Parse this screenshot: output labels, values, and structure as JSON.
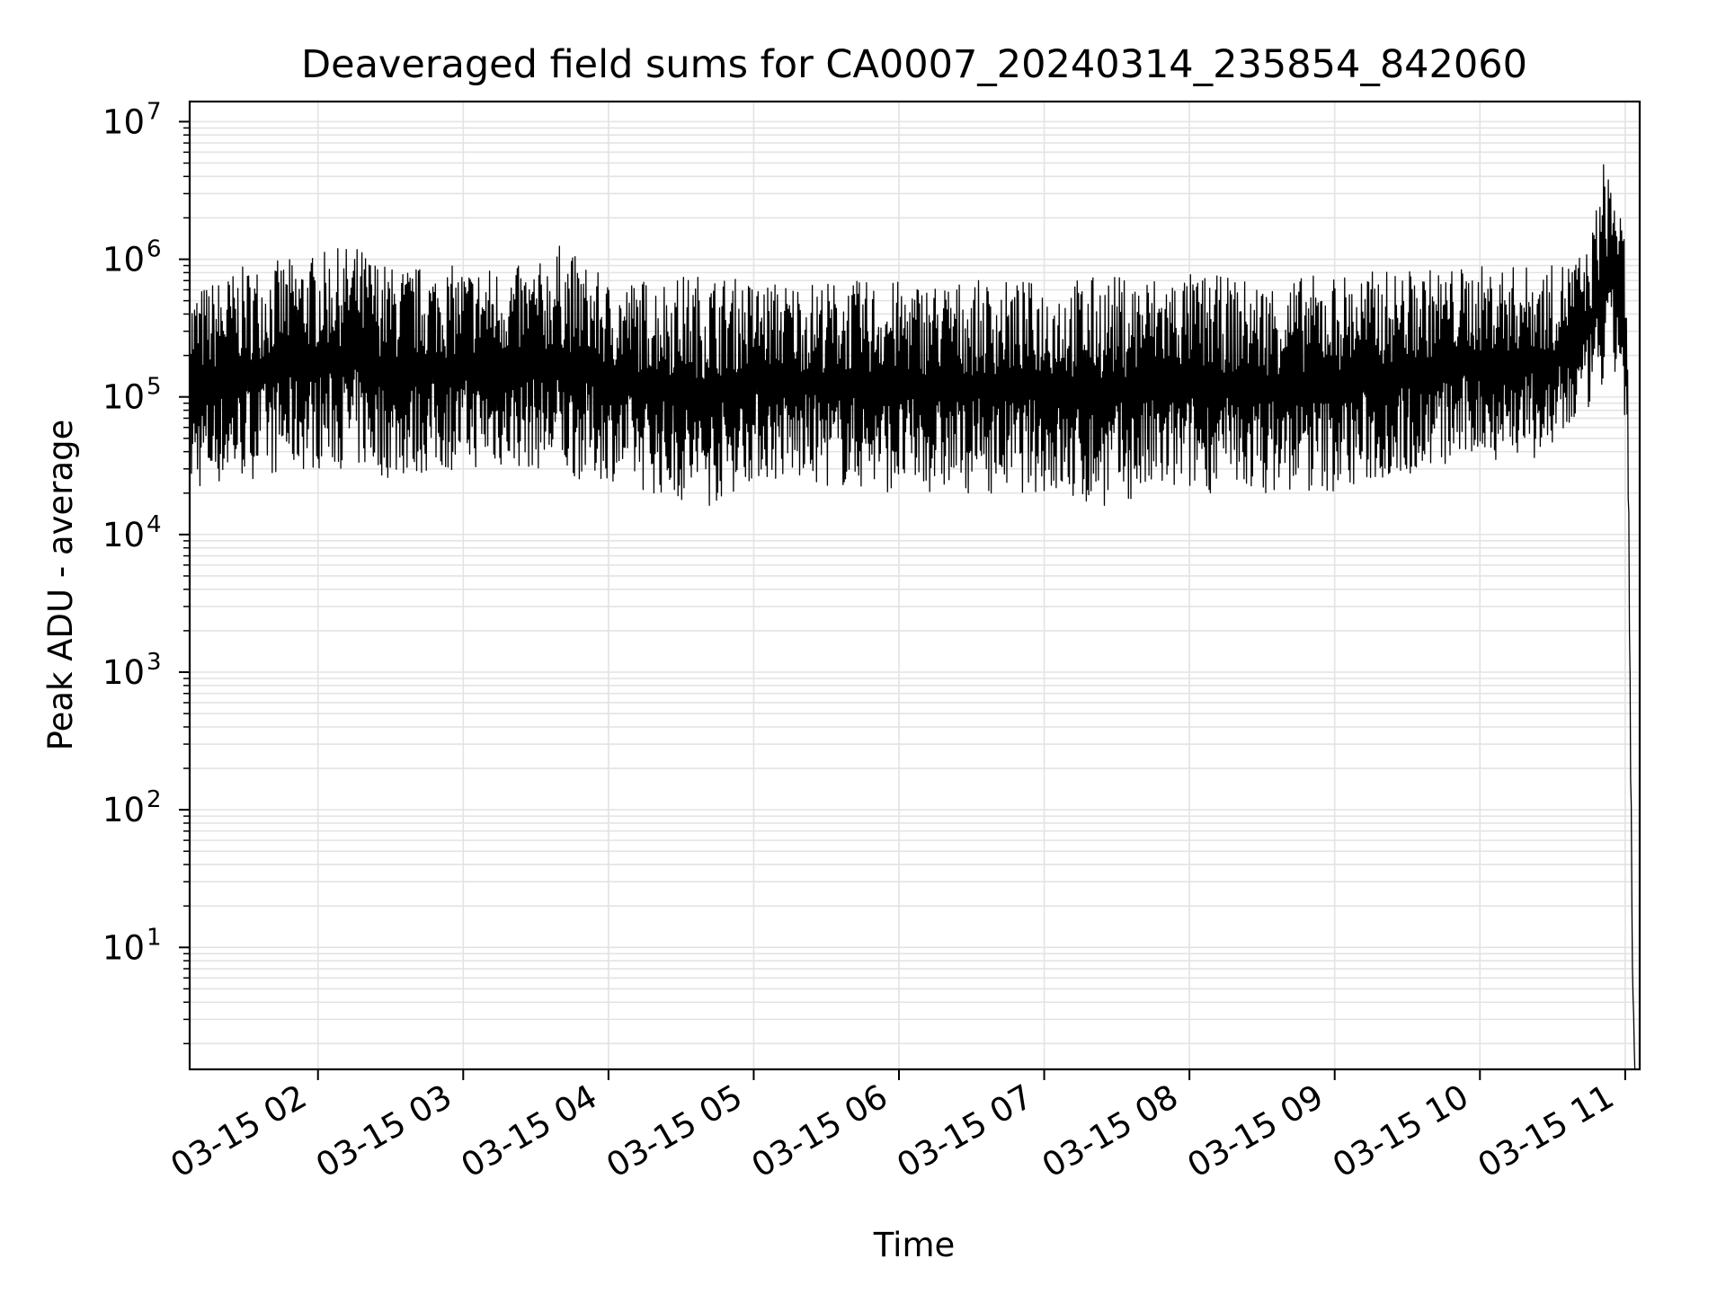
{
  "chart_data": {
    "type": "line",
    "title": "Deaveraged field sums for CA0007_20240314_235854_842060",
    "xlabel": "Time",
    "ylabel": "Peak ADU - average",
    "yscale": "log",
    "ylim": [
      1.3,
      14000000
    ],
    "xlim": [
      "03-15 01:07",
      "03-15 11:06"
    ],
    "grid": true,
    "x_ticks": [
      {
        "value": "03-15 02:00",
        "label": "03-15 02"
      },
      {
        "value": "03-15 03:00",
        "label": "03-15 03"
      },
      {
        "value": "03-15 04:00",
        "label": "03-15 04"
      },
      {
        "value": "03-15 05:00",
        "label": "03-15 05"
      },
      {
        "value": "03-15 06:00",
        "label": "03-15 06"
      },
      {
        "value": "03-15 07:00",
        "label": "03-15 07"
      },
      {
        "value": "03-15 08:00",
        "label": "03-15 08"
      },
      {
        "value": "03-15 09:00",
        "label": "03-15 09"
      },
      {
        "value": "03-15 10:00",
        "label": "03-15 10"
      },
      {
        "value": "03-15 11:00",
        "label": "03-15 11"
      }
    ],
    "y_ticks": [
      {
        "value": 10,
        "base": "10",
        "exp": "1"
      },
      {
        "value": 100,
        "base": "10",
        "exp": "2"
      },
      {
        "value": 1000,
        "base": "10",
        "exp": "3"
      },
      {
        "value": 10000,
        "base": "10",
        "exp": "4"
      },
      {
        "value": 100000,
        "base": "10",
        "exp": "5"
      },
      {
        "value": 1000000,
        "base": "10",
        "exp": "6"
      },
      {
        "value": 10000000,
        "base": "10",
        "exp": "7"
      }
    ],
    "series": [
      {
        "color": "#000000",
        "x": [
          "03-15 01:07",
          "03-15 01:30",
          "03-15 02:00",
          "03-15 02:15",
          "03-15 02:30",
          "03-15 03:00",
          "03-15 03:30",
          "03-15 03:40",
          "03-15 04:00",
          "03-15 04:40",
          "03-15 05:00",
          "03-15 06:00",
          "03-15 07:00",
          "03-15 07:15",
          "03-15 08:00",
          "03-15 08:30",
          "03-15 09:00",
          "03-15 10:00",
          "03-15 10:30",
          "03-15 10:45",
          "03-15 10:52",
          "03-15 10:57",
          "03-15 11:00",
          "03-15 11:01",
          "03-15 11:03",
          "03-15 11:04"
        ],
        "y_high": [
          600000,
          900000,
          1100000,
          1300000,
          900000,
          900000,
          900000,
          1300000,
          700000,
          800000,
          700000,
          700000,
          700000,
          750000,
          800000,
          700000,
          800000,
          900000,
          900000,
          1200000,
          6500000,
          3200000,
          1200000,
          200000,
          10,
          1.3
        ],
        "y_low": [
          20000,
          25000,
          30000,
          30000,
          25000,
          30000,
          30000,
          25000,
          25000,
          15000,
          25000,
          20000,
          20000,
          15000,
          20000,
          20000,
          20000,
          35000,
          35000,
          80000,
          100000,
          150000,
          60000,
          40000,
          5,
          1.3
        ]
      }
    ]
  }
}
